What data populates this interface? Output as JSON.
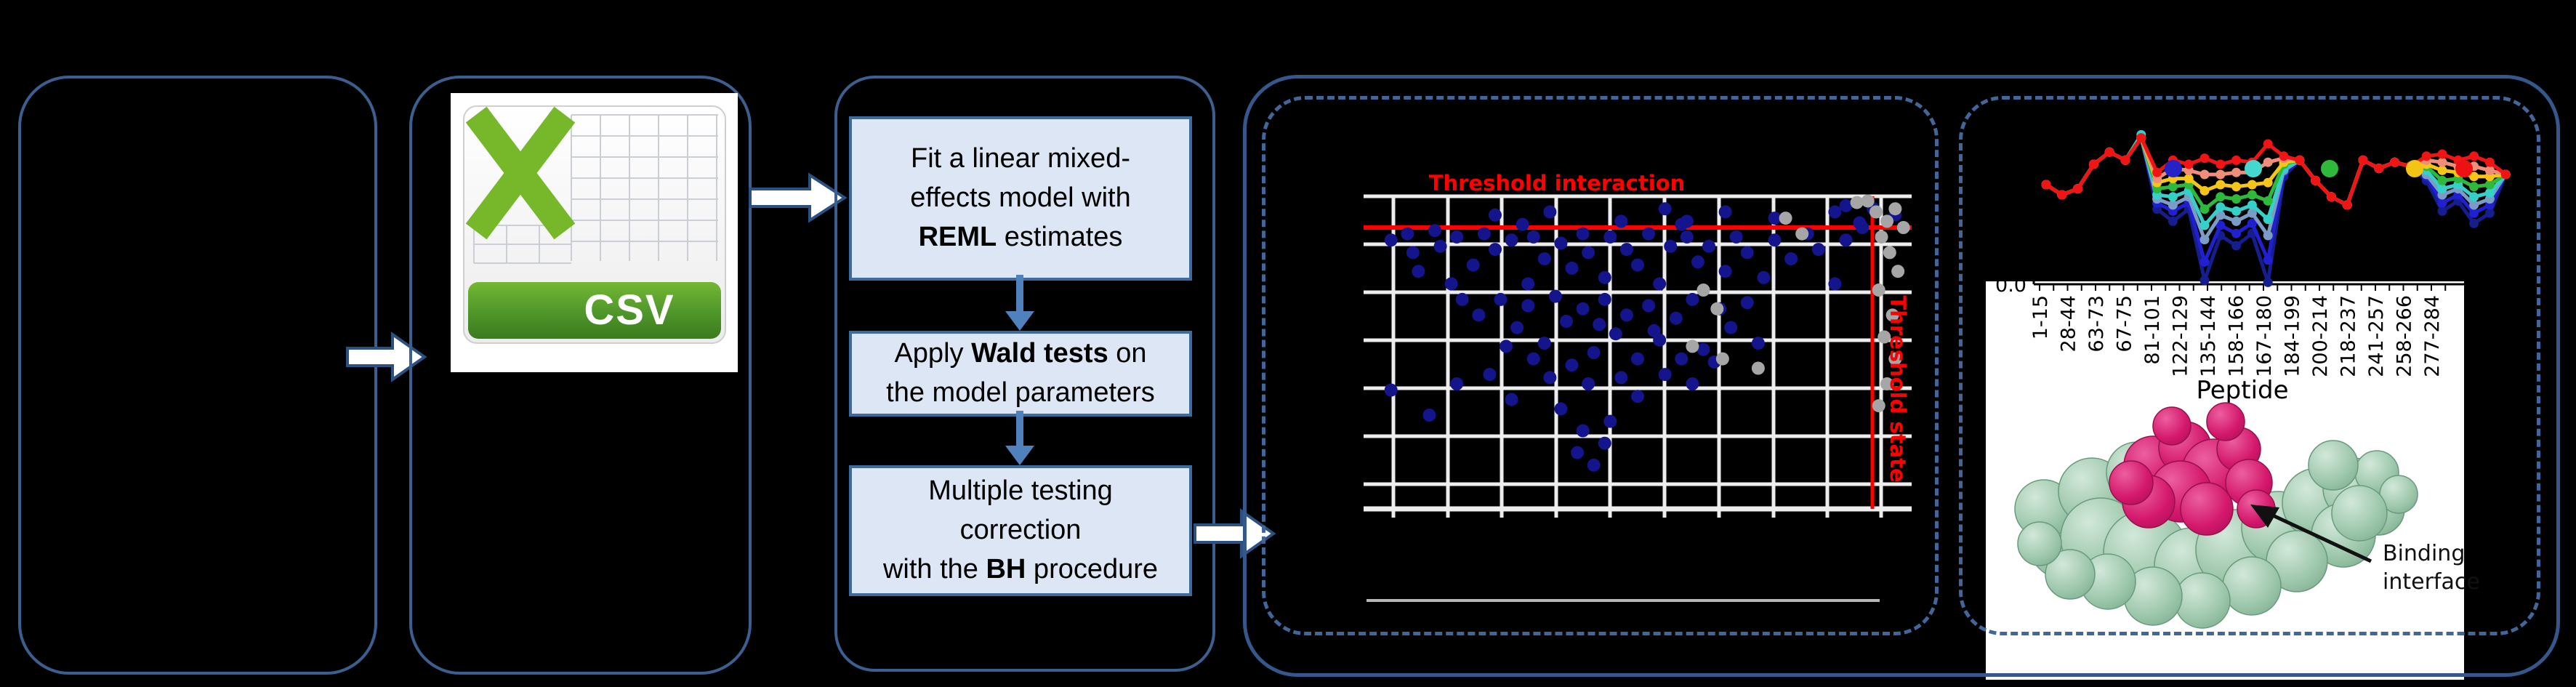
{
  "csv": {
    "label": "CSV"
  },
  "workflow": {
    "boxes": [
      {
        "id": "reml",
        "lines": [
          [
            {
              "t": "Fit a linear mixed-"
            }
          ],
          [
            {
              "t": "effects model with"
            }
          ],
          [
            {
              "t": "REML",
              "b": 1
            },
            {
              "t": " estimates"
            }
          ]
        ]
      },
      {
        "id": "wald",
        "lines": [
          [
            {
              "t": "Apply "
            },
            {
              "t": "Wald tests",
              "b": 1
            },
            {
              "t": " on"
            }
          ],
          [
            {
              "t": "the model parameters"
            }
          ]
        ]
      },
      {
        "id": "bh",
        "lines": [
          [
            {
              "t": "Multiple testing"
            }
          ],
          [
            {
              "t": "correction"
            }
          ],
          [
            {
              "t": "with the "
            },
            {
              "t": "BH",
              "b": 1
            },
            {
              "t": " procedure"
            }
          ]
        ]
      }
    ]
  },
  "chart_data": [
    {
      "type": "scatter",
      "title": "Threshold interaction",
      "threshold_state_label": "Threshold state",
      "title_color": "#ff0000",
      "grid_color": "#ededed",
      "dot_color_blue": "#14148c",
      "dot_color_gray": "#a6a6a6",
      "threshold_line_color": "#ff0000",
      "points_blue": [
        [
          0.24,
          0.06
        ],
        [
          0.29,
          0.09
        ],
        [
          0.34,
          0.05
        ],
        [
          0.47,
          0.08
        ],
        [
          0.55,
          0.04
        ],
        [
          0.58,
          0.09
        ],
        [
          0.66,
          0.05
        ],
        [
          0.75,
          0.07
        ],
        [
          0.86,
          0.05
        ],
        [
          0.97,
          0.06
        ],
        [
          0.93,
          0.04
        ],
        [
          0.88,
          0.03
        ],
        [
          0.905,
          0.085
        ],
        [
          0.05,
          0.14
        ],
        [
          0.08,
          0.12
        ],
        [
          0.09,
          0.18
        ],
        [
          0.13,
          0.11
        ],
        [
          0.14,
          0.16
        ],
        [
          0.17,
          0.13
        ],
        [
          0.2,
          0.22
        ],
        [
          0.22,
          0.12
        ],
        [
          0.24,
          0.17
        ],
        [
          0.27,
          0.14
        ],
        [
          0.3,
          0.28
        ],
        [
          0.31,
          0.13
        ],
        [
          0.33,
          0.2
        ],
        [
          0.36,
          0.15
        ],
        [
          0.38,
          0.23
        ],
        [
          0.4,
          0.12
        ],
        [
          0.41,
          0.18
        ],
        [
          0.44,
          0.26
        ],
        [
          0.45,
          0.13
        ],
        [
          0.48,
          0.17
        ],
        [
          0.5,
          0.22
        ],
        [
          0.52,
          0.12
        ],
        [
          0.54,
          0.28
        ],
        [
          0.56,
          0.16
        ],
        [
          0.59,
          0.13
        ],
        [
          0.61,
          0.21
        ],
        [
          0.63,
          0.16
        ],
        [
          0.66,
          0.24
        ],
        [
          0.68,
          0.13
        ],
        [
          0.7,
          0.18
        ],
        [
          0.73,
          0.26
        ],
        [
          0.75,
          0.14
        ],
        [
          0.78,
          0.2
        ],
        [
          0.81,
          0.12
        ],
        [
          0.83,
          0.17
        ],
        [
          0.86,
          0.28
        ],
        [
          0.88,
          0.14
        ],
        [
          0.91,
          0.1
        ],
        [
          0.59,
          0.08
        ],
        [
          0.1,
          0.24
        ],
        [
          0.16,
          0.28
        ],
        [
          0.18,
          0.33
        ],
        [
          0.21,
          0.38
        ],
        [
          0.25,
          0.33
        ],
        [
          0.28,
          0.42
        ],
        [
          0.3,
          0.35
        ],
        [
          0.33,
          0.47
        ],
        [
          0.35,
          0.32
        ],
        [
          0.37,
          0.4
        ],
        [
          0.4,
          0.36
        ],
        [
          0.42,
          0.5
        ],
        [
          0.44,
          0.33
        ],
        [
          0.46,
          0.44
        ],
        [
          0.48,
          0.38
        ],
        [
          0.5,
          0.52
        ],
        [
          0.52,
          0.35
        ],
        [
          0.54,
          0.46
        ],
        [
          0.57,
          0.39
        ],
        [
          0.6,
          0.33
        ],
        [
          0.62,
          0.49
        ],
        [
          0.65,
          0.36
        ],
        [
          0.67,
          0.42
        ],
        [
          0.7,
          0.34
        ],
        [
          0.72,
          0.47
        ],
        [
          0.53,
          0.43
        ],
        [
          0.38,
          0.54
        ],
        [
          0.43,
          0.41
        ],
        [
          0.58,
          0.52
        ],
        [
          0.31,
          0.52
        ],
        [
          0.26,
          0.48
        ],
        [
          0.64,
          0.53
        ],
        [
          0.17,
          0.6
        ],
        [
          0.23,
          0.57
        ],
        [
          0.27,
          0.65
        ],
        [
          0.34,
          0.58
        ],
        [
          0.36,
          0.68
        ],
        [
          0.41,
          0.6
        ],
        [
          0.45,
          0.72
        ],
        [
          0.47,
          0.58
        ],
        [
          0.5,
          0.64
        ],
        [
          0.55,
          0.57
        ],
        [
          0.4,
          0.75
        ],
        [
          0.44,
          0.79
        ],
        [
          0.05,
          0.62
        ],
        [
          0.12,
          0.7
        ],
        [
          0.6,
          0.6
        ],
        [
          0.39,
          0.82
        ],
        [
          0.42,
          0.86
        ]
      ],
      "points_gray": [
        [
          0.935,
          0.05
        ],
        [
          0.955,
          0.08
        ],
        [
          0.97,
          0.04
        ],
        [
          0.985,
          0.1
        ],
        [
          0.945,
          0.13
        ],
        [
          0.96,
          0.18
        ],
        [
          0.975,
          0.24
        ],
        [
          0.94,
          0.3
        ],
        [
          0.965,
          0.38
        ],
        [
          0.95,
          0.45
        ],
        [
          0.97,
          0.52
        ],
        [
          0.955,
          0.6
        ],
        [
          0.94,
          0.67
        ],
        [
          0.62,
          0.3
        ],
        [
          0.645,
          0.36
        ],
        [
          0.6,
          0.48
        ],
        [
          0.655,
          0.52
        ],
        [
          0.72,
          0.55
        ],
        [
          0.77,
          0.07
        ],
        [
          0.8,
          0.12
        ],
        [
          0.9,
          0.02
        ],
        [
          0.92,
          0.015
        ]
      ]
    },
    {
      "type": "line",
      "xlabel": "Peptide",
      "y_tick_label": "0.0",
      "categories": [
        "1-15",
        "28-44",
        "63-73",
        "67-75",
        "81-101",
        "122-129",
        "135-144",
        "158-166",
        "167-180",
        "184-199",
        "200-214",
        "218-237",
        "241-257",
        "258-266",
        "277-284"
      ],
      "legend_dot_colors": [
        "#2323c8",
        "#45d8cf",
        "#2eb93c",
        "#f2c414",
        "#ee1111"
      ],
      "series": [
        {
          "color": "#151e8c",
          "values": [
            0.5,
            0.45,
            0.48,
            0.6,
            0.66,
            0.62,
            0.73,
            0.38,
            0.32,
            0.38,
            0.03,
            0.25,
            0.2,
            0.26,
            0.02,
            0.54,
            0.62,
            0.52,
            0.44,
            0.4,
            0.62,
            0.58,
            0.61,
            0.59,
            0.52,
            0.37,
            0.42,
            0.31,
            0.36,
            0.55
          ]
        },
        {
          "color": "#2020d0",
          "values": [
            0.5,
            0.45,
            0.48,
            0.6,
            0.66,
            0.62,
            0.73,
            0.41,
            0.37,
            0.41,
            0.12,
            0.3,
            0.26,
            0.31,
            0.13,
            0.56,
            0.62,
            0.52,
            0.44,
            0.4,
            0.62,
            0.58,
            0.61,
            0.59,
            0.54,
            0.41,
            0.45,
            0.36,
            0.4,
            0.55
          ]
        },
        {
          "color": "#7b9cc4",
          "values": [
            0.5,
            0.45,
            0.48,
            0.6,
            0.66,
            0.62,
            0.73,
            0.43,
            0.4,
            0.44,
            0.23,
            0.35,
            0.32,
            0.36,
            0.25,
            0.57,
            0.62,
            0.52,
            0.44,
            0.4,
            0.62,
            0.58,
            0.61,
            0.59,
            0.55,
            0.45,
            0.48,
            0.4,
            0.43,
            0.55
          ]
        },
        {
          "color": "#35d1c9",
          "values": [
            0.5,
            0.45,
            0.48,
            0.6,
            0.66,
            0.62,
            0.745,
            0.45,
            0.44,
            0.47,
            0.3,
            0.39,
            0.37,
            0.4,
            0.33,
            0.58,
            0.62,
            0.52,
            0.44,
            0.4,
            0.62,
            0.58,
            0.61,
            0.59,
            0.57,
            0.48,
            0.5,
            0.44,
            0.46,
            0.55
          ]
        },
        {
          "color": "#2eb93c",
          "values": [
            0.5,
            0.45,
            0.48,
            0.6,
            0.66,
            0.62,
            0.73,
            0.48,
            0.49,
            0.5,
            0.38,
            0.44,
            0.43,
            0.45,
            0.42,
            0.6,
            0.62,
            0.52,
            0.44,
            0.4,
            0.62,
            0.58,
            0.61,
            0.59,
            0.59,
            0.52,
            0.53,
            0.49,
            0.5,
            0.55
          ]
        },
        {
          "color": "#f5c518",
          "values": [
            0.5,
            0.45,
            0.48,
            0.6,
            0.66,
            0.62,
            0.73,
            0.51,
            0.53,
            0.53,
            0.47,
            0.5,
            0.49,
            0.5,
            0.51,
            0.61,
            0.62,
            0.52,
            0.44,
            0.4,
            0.62,
            0.58,
            0.61,
            0.59,
            0.6,
            0.57,
            0.56,
            0.54,
            0.54,
            0.55
          ]
        },
        {
          "color": "#ef8f7a",
          "values": [
            0.5,
            0.45,
            0.48,
            0.6,
            0.66,
            0.62,
            0.73,
            0.53,
            0.58,
            0.57,
            0.55,
            0.55,
            0.56,
            0.56,
            0.61,
            0.63,
            0.62,
            0.52,
            0.44,
            0.4,
            0.62,
            0.58,
            0.61,
            0.59,
            0.62,
            0.61,
            0.59,
            0.59,
            0.57,
            0.55
          ]
        },
        {
          "color": "#f01414",
          "values": [
            0.5,
            0.45,
            0.48,
            0.6,
            0.66,
            0.62,
            0.73,
            0.56,
            0.62,
            0.6,
            0.63,
            0.6,
            0.62,
            0.61,
            0.7,
            0.64,
            0.62,
            0.52,
            0.44,
            0.4,
            0.62,
            0.58,
            0.61,
            0.59,
            0.64,
            0.65,
            0.62,
            0.64,
            0.61,
            0.55
          ]
        }
      ]
    }
  ],
  "protein_image": {
    "annotation": "Binding interface",
    "green_color": "#9dc7ab",
    "magenta_color": "#d4186c",
    "green_blobs": [
      [
        2842,
        745,
        52
      ],
      [
        2812,
        700,
        40
      ],
      [
        2878,
        676,
        46
      ],
      [
        2940,
        650,
        42
      ],
      [
        2996,
        668,
        40
      ],
      [
        2890,
        740,
        55
      ],
      [
        2952,
        760,
        58
      ],
      [
        3016,
        778,
        52
      ],
      [
        3076,
        756,
        55
      ],
      [
        3134,
        726,
        50
      ],
      [
        3188,
        692,
        48
      ],
      [
        3238,
        672,
        42
      ],
      [
        3272,
        700,
        36
      ],
      [
        3224,
        736,
        44
      ],
      [
        3160,
        772,
        42
      ],
      [
        3098,
        806,
        40
      ],
      [
        3030,
        826,
        38
      ],
      [
        2962,
        820,
        40
      ],
      [
        2900,
        800,
        38
      ],
      [
        2848,
        790,
        34
      ],
      [
        3270,
        650,
        30
      ],
      [
        3300,
        680,
        26
      ],
      [
        2806,
        748,
        30
      ],
      [
        3210,
        640,
        34
      ],
      [
        3246,
        706,
        38
      ]
    ],
    "magenta_blobs": [
      [
        2962,
        640,
        40
      ],
      [
        3006,
        616,
        36
      ],
      [
        3046,
        648,
        44
      ],
      [
        3000,
        676,
        42
      ],
      [
        2956,
        690,
        36
      ],
      [
        3080,
        618,
        30
      ],
      [
        3036,
        700,
        36
      ],
      [
        2988,
        586,
        26
      ],
      [
        3062,
        580,
        26
      ],
      [
        3094,
        664,
        32
      ],
      [
        3104,
        700,
        26
      ],
      [
        2932,
        664,
        30
      ]
    ]
  }
}
